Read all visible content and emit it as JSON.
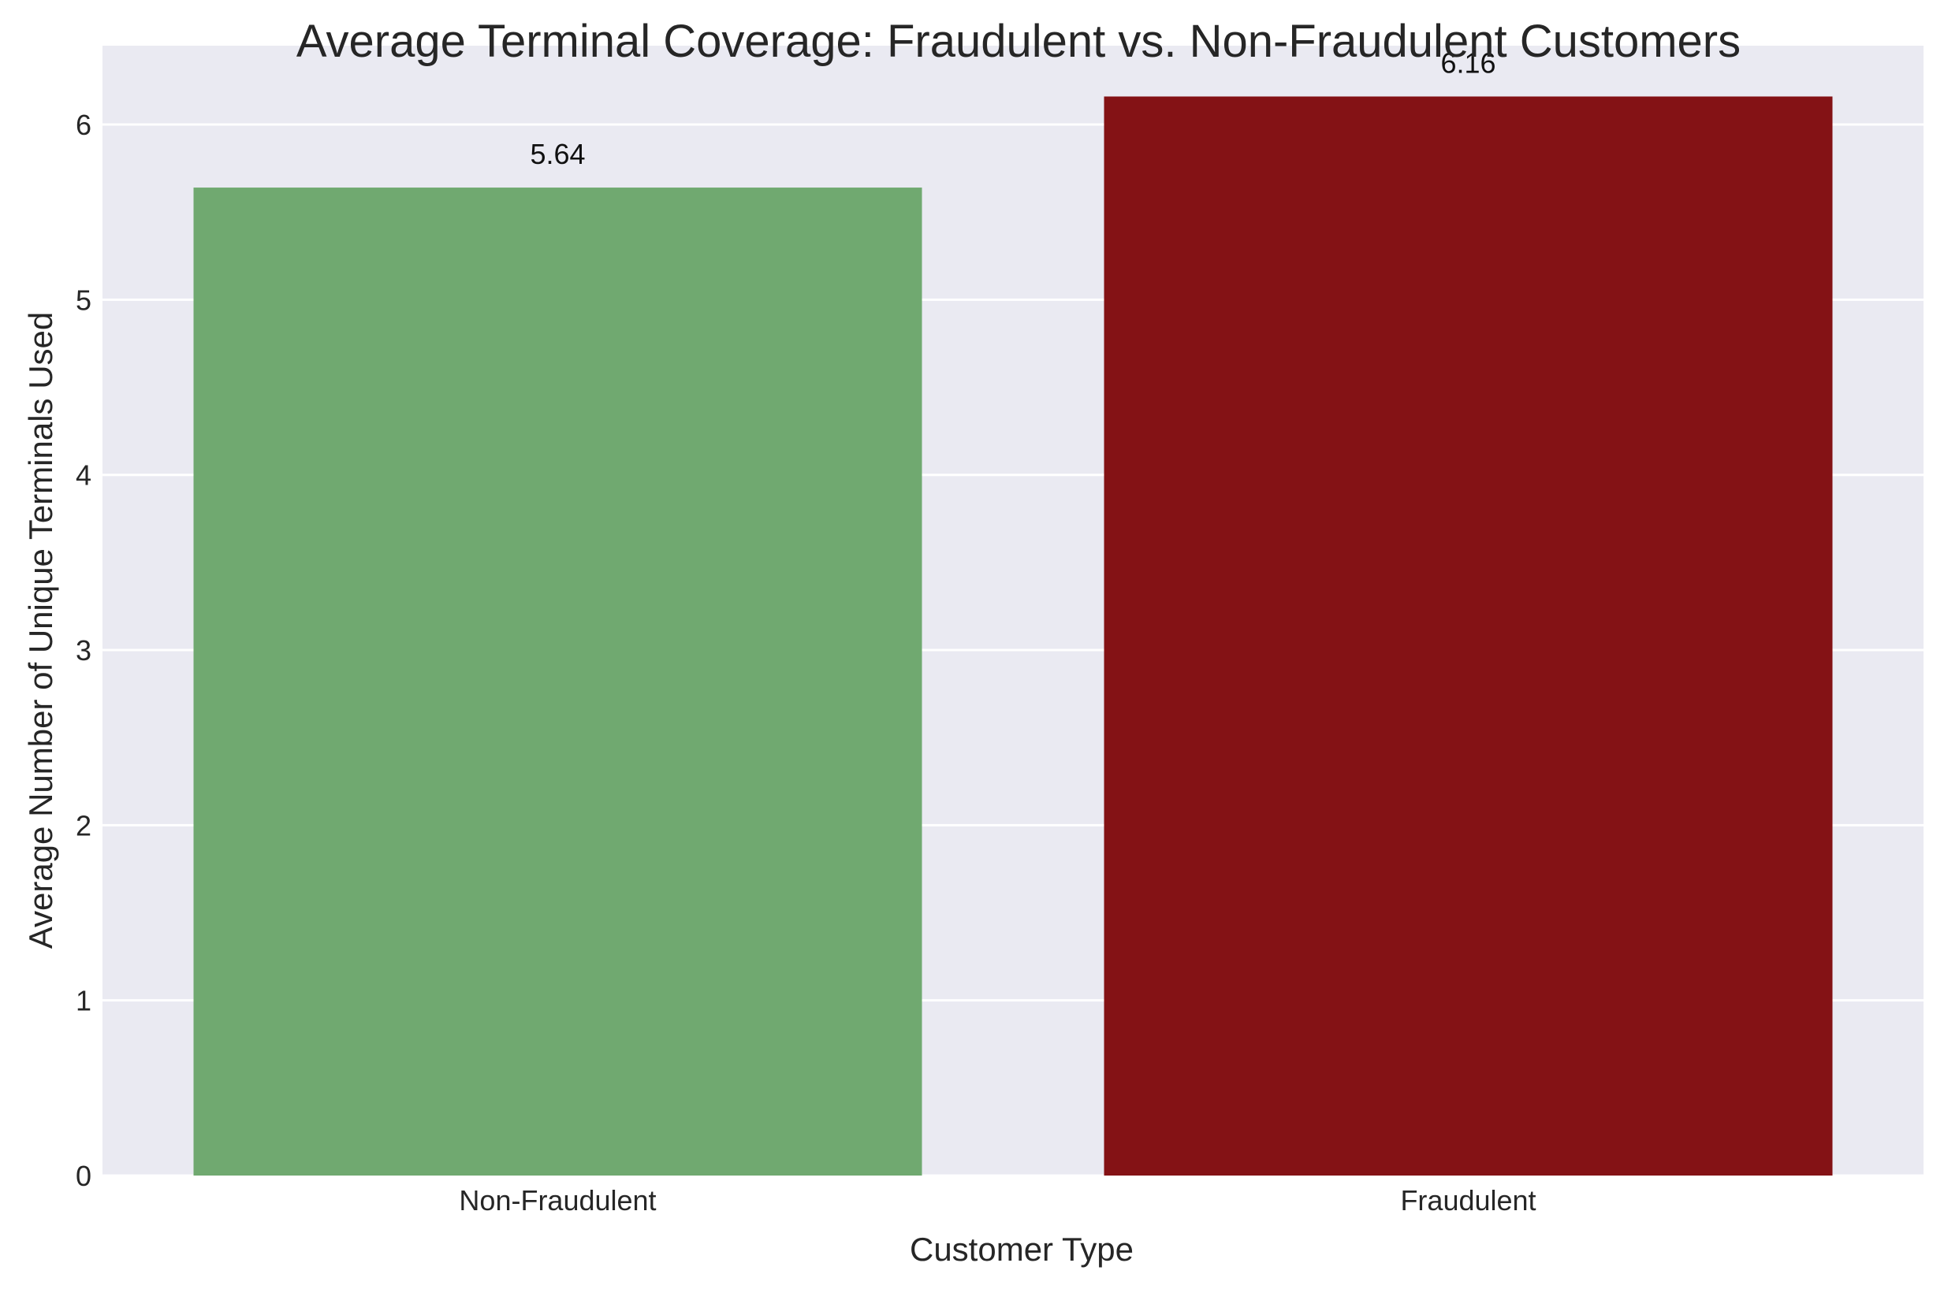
{
  "chart_data": {
    "type": "bar",
    "title": "Average Terminal Coverage: Fraudulent vs. Non-Fraudulent Customers",
    "xlabel": "Customer Type",
    "ylabel": "Average Number of Unique Terminals Used",
    "categories": [
      "Non-Fraudulent",
      "Fraudulent"
    ],
    "values": [
      5.64,
      6.16
    ],
    "value_labels": [
      "5.64",
      "6.16"
    ],
    "colors": [
      "#70a970",
      "#841215"
    ],
    "ylim": [
      0,
      6.45
    ],
    "yticks": [
      0,
      1,
      2,
      3,
      4,
      5,
      6
    ],
    "ytick_labels": [
      "0",
      "1",
      "2",
      "3",
      "4",
      "5",
      "6"
    ],
    "grid": "horizontal",
    "background_color": "#eaeaf2",
    "grid_color": "#ffffff",
    "legend": "none"
  }
}
